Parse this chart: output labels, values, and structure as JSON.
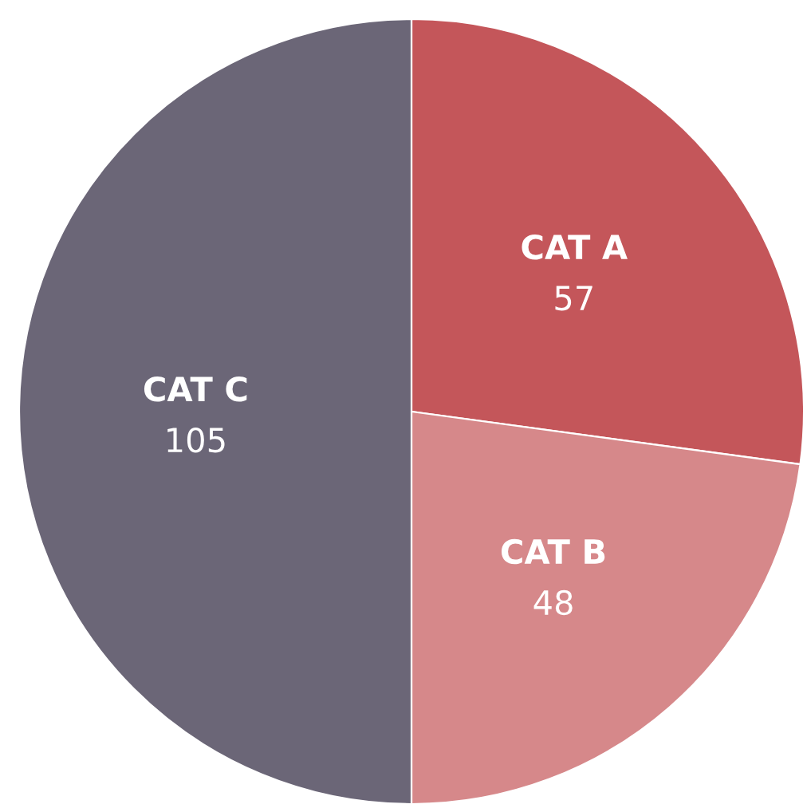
{
  "chart_data": {
    "type": "pie",
    "categories": [
      "CAT A",
      "CAT B",
      "CAT C"
    ],
    "values": [
      57,
      48,
      105
    ],
    "colors": [
      "#c4565a",
      "#d6888a",
      "#6b6677"
    ],
    "data_labels": true
  }
}
